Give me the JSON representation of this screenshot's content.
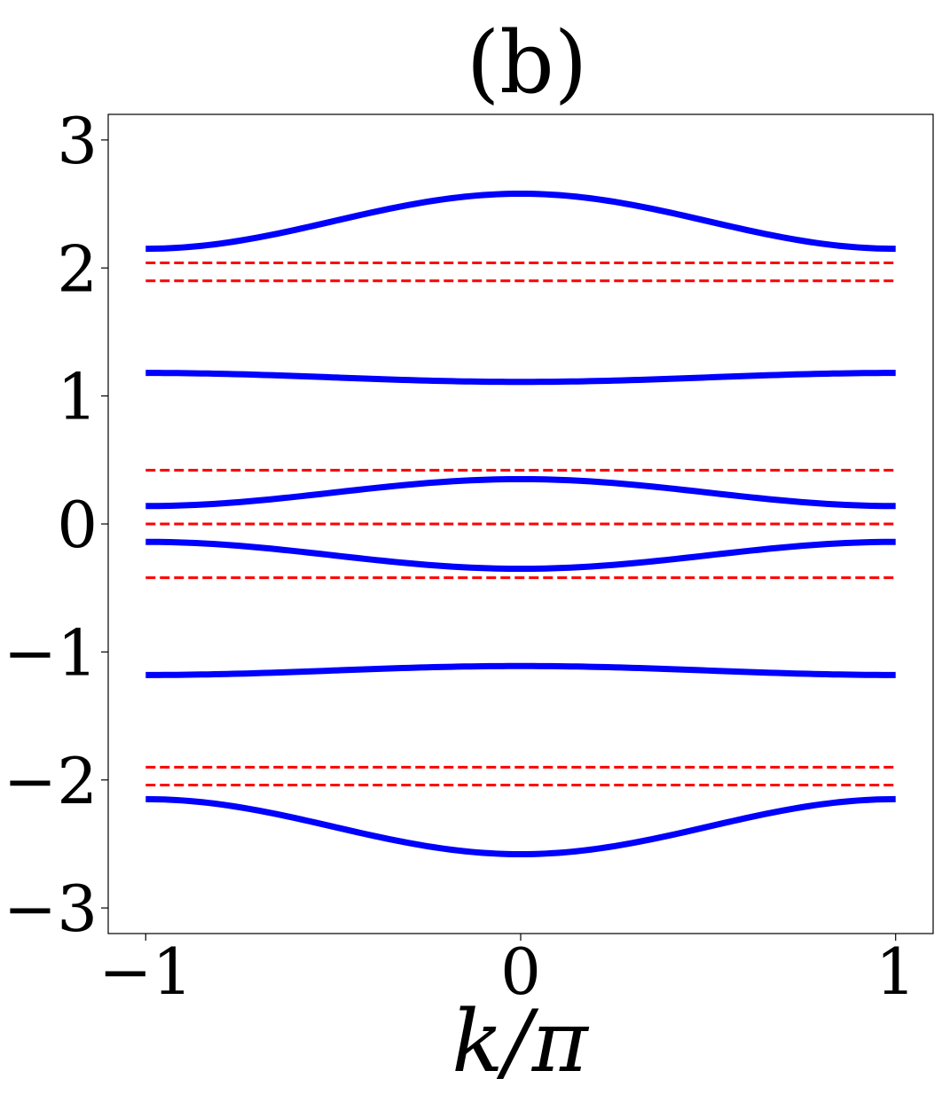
{
  "chart_data": {
    "type": "line",
    "title": "(b)",
    "xlabel": "k/π",
    "ylabel": "",
    "xlim": [
      -1.1,
      1.1
    ],
    "ylim": [
      -3.2,
      3.2
    ],
    "xticks": [
      -1,
      0,
      1
    ],
    "xtick_labels": [
      "−1",
      "0",
      "1"
    ],
    "yticks": [
      -3,
      -2,
      -1,
      0,
      1,
      2,
      3
    ],
    "ytick_labels": [
      "−3",
      "−2",
      "−1",
      "0",
      "1",
      "2",
      "3"
    ],
    "grid": false,
    "legend": "none",
    "series_color": "#0000ff",
    "reference_color": "#ff0000",
    "bands": [
      {
        "x": [
          -1,
          -0.5,
          0,
          0.5,
          1
        ],
        "y": [
          2.15,
          2.37,
          2.58,
          2.37,
          2.15
        ]
      },
      {
        "x": [
          -1,
          -0.5,
          0,
          0.5,
          1
        ],
        "y": [
          1.18,
          1.145,
          1.11,
          1.145,
          1.18
        ]
      },
      {
        "x": [
          -1,
          -0.5,
          0,
          0.5,
          1
        ],
        "y": [
          0.14,
          0.245,
          0.35,
          0.245,
          0.14
        ]
      },
      {
        "x": [
          -1,
          -0.5,
          0,
          0.5,
          1
        ],
        "y": [
          -0.14,
          -0.245,
          -0.35,
          -0.245,
          -0.14
        ]
      },
      {
        "x": [
          -1,
          -0.5,
          0,
          0.5,
          1
        ],
        "y": [
          -1.18,
          -1.145,
          -1.11,
          -1.145,
          -1.18
        ]
      },
      {
        "x": [
          -1,
          -0.5,
          0,
          0.5,
          1
        ],
        "y": [
          -2.15,
          -2.37,
          -2.58,
          -2.37,
          -2.15
        ]
      }
    ],
    "reference_lines": [
      {
        "x": [
          -1,
          1
        ],
        "y": 2.04
      },
      {
        "x": [
          -1,
          1
        ],
        "y": 1.9
      },
      {
        "x": [
          -1,
          1
        ],
        "y": 0.42
      },
      {
        "x": [
          -1,
          1
        ],
        "y": 0.0
      },
      {
        "x": [
          -1,
          1
        ],
        "y": -0.42
      },
      {
        "x": [
          -1,
          1
        ],
        "y": -1.9
      },
      {
        "x": [
          -1,
          1
        ],
        "y": -2.04
      }
    ]
  }
}
